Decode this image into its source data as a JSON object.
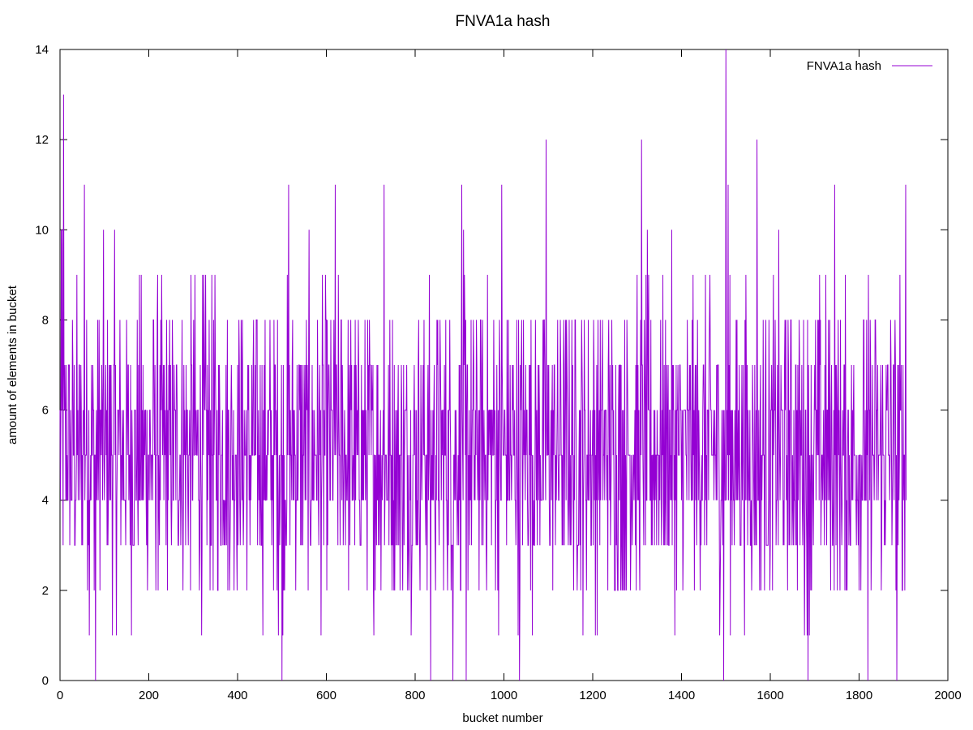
{
  "chart_data": {
    "type": "line",
    "title": "FNVA1a hash",
    "xlabel": "bucket number",
    "ylabel": "amount of elements in bucket",
    "xlim": [
      0,
      2000
    ],
    "ylim": [
      0,
      14
    ],
    "xticks": [
      "0",
      "200",
      "400",
      "600",
      "800",
      "1000",
      "1200",
      "1400",
      "1600",
      "1800",
      "2000"
    ],
    "yticks": [
      "0",
      "2",
      "4",
      "6",
      "8",
      "10",
      "12",
      "14"
    ],
    "grid": false,
    "legend_position": "top-right",
    "series": [
      {
        "name": "FNVA1a hash",
        "color": "#9400d3",
        "x_start": 0,
        "x_end": 1906,
        "note_values": "one value per bucket; series is dense noise around mean ~5, typical range 1-9",
        "peaks": [
          {
            "x": 8,
            "y": 13
          },
          {
            "x": 5,
            "y": 10
          },
          {
            "x": 55,
            "y": 11
          },
          {
            "x": 515,
            "y": 11
          },
          {
            "x": 620,
            "y": 11
          },
          {
            "x": 730,
            "y": 11
          },
          {
            "x": 905,
            "y": 11
          },
          {
            "x": 995,
            "y": 11
          },
          {
            "x": 1095,
            "y": 12
          },
          {
            "x": 1310,
            "y": 12
          },
          {
            "x": 1500,
            "y": 14
          },
          {
            "x": 1505,
            "y": 11
          },
          {
            "x": 1570,
            "y": 12
          },
          {
            "x": 1745,
            "y": 11
          },
          {
            "x": 1905,
            "y": 11
          }
        ],
        "zeros": [
          80,
          500,
          835,
          885,
          915,
          1035,
          1495,
          1685,
          1820,
          1885
        ],
        "mean": 5
      }
    ]
  }
}
